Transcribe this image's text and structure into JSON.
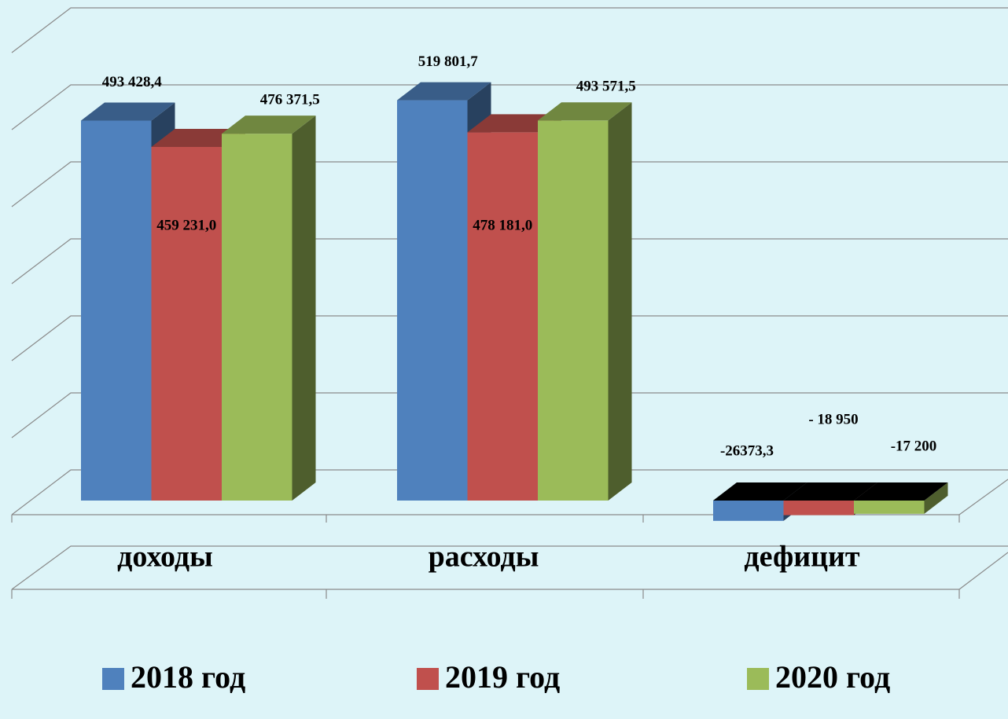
{
  "chart_data": {
    "type": "bar3d",
    "categories": [
      "доходы",
      "расходы",
      "дефицит"
    ],
    "series": [
      {
        "name": "2018 год",
        "color": "#4f81bd",
        "values": [
          493428.4,
          519801.7,
          -26373.3
        ],
        "value_labels": [
          "493 428,4",
          "519 801,7",
          "-26373,3"
        ]
      },
      {
        "name": "2019 год",
        "color": "#c0504d",
        "values": [
          459231.0,
          478181.0,
          -18950
        ],
        "value_labels": [
          "459 231,0",
          "478 181,0",
          "- 18 950"
        ]
      },
      {
        "name": "2020 год",
        "color": "#9bbb59",
        "values": [
          476371.5,
          493571.5,
          -17200
        ],
        "value_labels": [
          "476 371,5",
          "493 571,5",
          "-17 200"
        ]
      }
    ],
    "ylim": [
      0,
      600000
    ],
    "yticks": [
      0,
      100000,
      200000,
      300000,
      400000,
      500000,
      600000
    ],
    "grid": true,
    "legend": "bottom"
  }
}
